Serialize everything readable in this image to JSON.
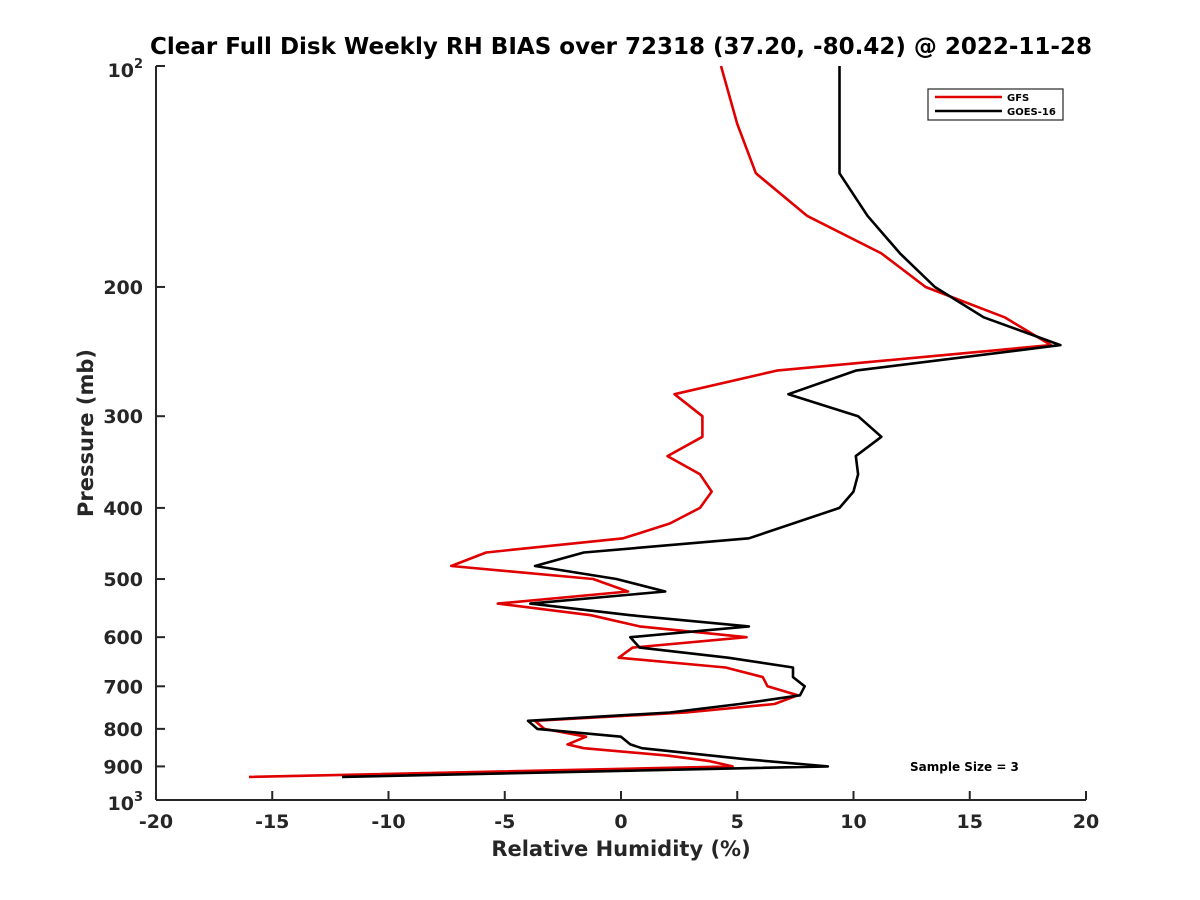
{
  "chart_data": {
    "type": "line",
    "title": "Clear Full Disk Weekly RH BIAS over 72318 (37.20, -80.42) @ 2022-11-28",
    "xlabel": "Relative Humidity (%)",
    "ylabel": "Pressure (mb)",
    "xlim": [
      -20,
      20
    ],
    "ylim": [
      100,
      1000
    ],
    "yscale": "log",
    "y_reversed": true,
    "grid": false,
    "legend_position": "top-right",
    "x_ticks": [
      "-20",
      "-15",
      "-10",
      "-5",
      "0",
      "5",
      "10",
      "15",
      "20"
    ],
    "y_ticks": [
      "200",
      "300",
      "400",
      "500",
      "600",
      "700",
      "800",
      "900"
    ],
    "y_tick_top": {
      "base": "10",
      "exp": "2"
    },
    "y_tick_bottom": {
      "base": "10",
      "exp": "3"
    },
    "annotation": "Sample Size = 3",
    "series": [
      {
        "name": "GFS",
        "color": "#e00000",
        "points": [
          [
            4.3,
            100
          ],
          [
            5.0,
            120
          ],
          [
            5.8,
            140
          ],
          [
            8.0,
            160
          ],
          [
            11.2,
            180
          ],
          [
            13.1,
            200
          ],
          [
            16.5,
            220
          ],
          [
            18.5,
            240
          ],
          [
            6.7,
            260
          ],
          [
            2.3,
            280
          ],
          [
            3.5,
            300
          ],
          [
            3.5,
            320
          ],
          [
            2.0,
            340
          ],
          [
            3.4,
            360
          ],
          [
            3.9,
            380
          ],
          [
            3.4,
            400
          ],
          [
            2.1,
            420
          ],
          [
            0.1,
            440
          ],
          [
            -5.8,
            460
          ],
          [
            -7.3,
            480
          ],
          [
            -1.2,
            500
          ],
          [
            0.3,
            520
          ],
          [
            -5.3,
            540
          ],
          [
            -1.3,
            560
          ],
          [
            0.8,
            580
          ],
          [
            5.4,
            600
          ],
          [
            0.5,
            620
          ],
          [
            -0.1,
            640
          ],
          [
            4.5,
            660
          ],
          [
            6.1,
            680
          ],
          [
            6.3,
            700
          ],
          [
            7.6,
            720
          ],
          [
            6.6,
            740
          ],
          [
            2.8,
            760
          ],
          [
            -3.7,
            780
          ],
          [
            -3.3,
            800
          ],
          [
            -1.5,
            820
          ],
          [
            -2.3,
            840
          ],
          [
            -1.6,
            850
          ],
          [
            2.0,
            870
          ],
          [
            3.8,
            885
          ],
          [
            4.8,
            900
          ],
          [
            -16.0,
            930
          ]
        ]
      },
      {
        "name": "GOES-16",
        "color": "#000000",
        "points": [
          [
            9.4,
            100
          ],
          [
            9.4,
            120
          ],
          [
            9.4,
            140
          ],
          [
            10.6,
            160
          ],
          [
            12.0,
            180
          ],
          [
            13.5,
            200
          ],
          [
            15.6,
            220
          ],
          [
            18.9,
            240
          ],
          [
            10.1,
            260
          ],
          [
            7.2,
            280
          ],
          [
            10.2,
            300
          ],
          [
            11.2,
            320
          ],
          [
            10.1,
            340
          ],
          [
            10.2,
            360
          ],
          [
            10.0,
            380
          ],
          [
            9.4,
            400
          ],
          [
            5.5,
            440
          ],
          [
            -1.6,
            460
          ],
          [
            -3.7,
            480
          ],
          [
            -0.2,
            500
          ],
          [
            1.9,
            520
          ],
          [
            -3.9,
            540
          ],
          [
            0.4,
            560
          ],
          [
            5.5,
            580
          ],
          [
            0.4,
            600
          ],
          [
            0.8,
            620
          ],
          [
            4.6,
            640
          ],
          [
            7.4,
            660
          ],
          [
            7.4,
            680
          ],
          [
            7.9,
            700
          ],
          [
            7.7,
            720
          ],
          [
            5.1,
            740
          ],
          [
            2.1,
            760
          ],
          [
            -4.0,
            780
          ],
          [
            -3.6,
            800
          ],
          [
            0.0,
            820
          ],
          [
            0.4,
            840
          ],
          [
            0.9,
            850
          ],
          [
            5.4,
            880
          ],
          [
            8.9,
            900
          ],
          [
            -12.0,
            930
          ]
        ]
      }
    ]
  }
}
